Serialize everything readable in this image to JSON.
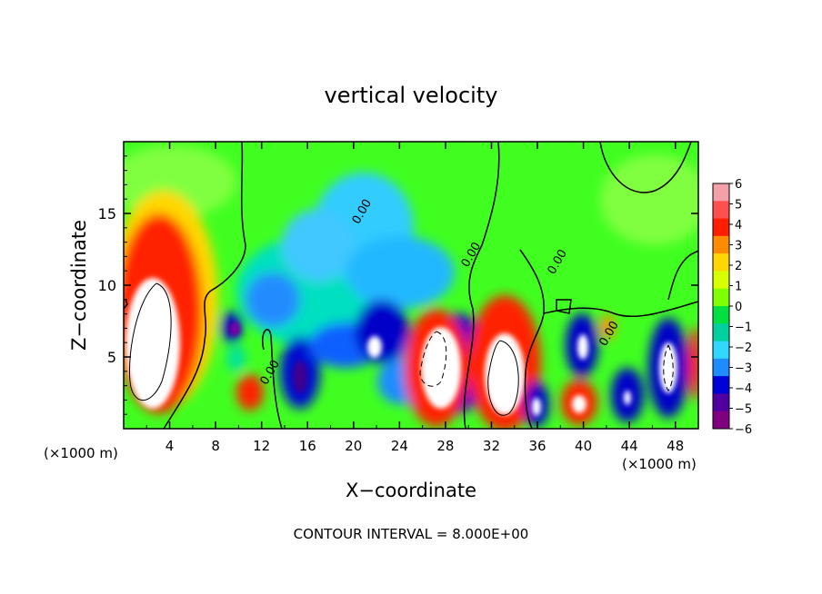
{
  "chart_data": {
    "type": "heatmap",
    "title": "vertical velocity",
    "xlabel": "X−coordinate",
    "ylabel": "Z−coordinate",
    "x_unit_left": "(×1000 m)",
    "x_unit_right": "(×1000 m)",
    "footer": "CONTOUR INTERVAL = 8.000E+00",
    "xlim": [
      0,
      50
    ],
    "ylim": [
      0,
      20
    ],
    "x_ticks": [
      4,
      8,
      12,
      16,
      20,
      24,
      28,
      32,
      36,
      40,
      44,
      48
    ],
    "x_tick_labels": [
      "4",
      "8",
      "12",
      "16",
      "20",
      "24",
      "28",
      "32",
      "36",
      "40",
      "44",
      "48"
    ],
    "y_ticks": [
      5,
      10,
      15
    ],
    "y_tick_labels": [
      "5",
      "10",
      "15"
    ],
    "colorbar": {
      "levels": [
        6,
        5,
        4,
        3,
        2,
        1,
        0,
        -1,
        -2,
        -3,
        -4,
        -5,
        -6
      ],
      "labels": [
        "6",
        "5",
        "4",
        "3",
        "2",
        "1",
        "0",
        "−1",
        "−2",
        "−3",
        "−4",
        "−5",
        "−6"
      ],
      "colors": [
        "#f4a0a8",
        "#ff5050",
        "#ff1e00",
        "#ff8c00",
        "#ffd700",
        "#d8ff00",
        "#80ff00",
        "#00e040",
        "#00d0a0",
        "#30d8ff",
        "#1e8cff",
        "#0000d8",
        "#5000a0",
        "#800080"
      ]
    },
    "contour_labels": [
      {
        "text": "0.00",
        "x": 21.0,
        "y": 15.0
      },
      {
        "text": "0.00",
        "x": 13.0,
        "y": 3.8
      },
      {
        "text": "0.00",
        "x": 30.5,
        "y": 12.0
      },
      {
        "text": "0.00",
        "x": 38.0,
        "y": 11.5
      },
      {
        "text": "0.00",
        "x": 42.5,
        "y": 6.5
      }
    ]
  }
}
